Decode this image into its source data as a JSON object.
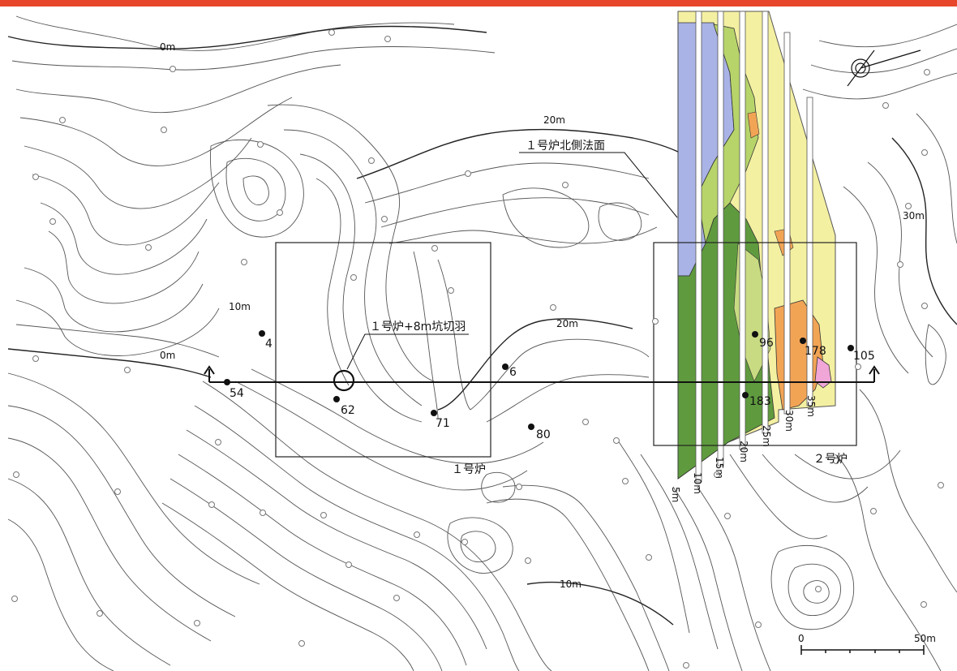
{
  "header_bar": {
    "color": "#e8462a"
  },
  "colors": {
    "geology_blue": "#aab3e6",
    "geology_green": "#5f9b3e",
    "geology_lightgreen": "#b7d46a",
    "geology_yellow": "#f4f0a2",
    "geology_orange": "#f2a455",
    "geology_pink": "#f0a6d6",
    "contour": "#555555"
  },
  "contour_labels": [
    {
      "id": "c-0m-top",
      "text": "0m"
    },
    {
      "id": "c-20m-top",
      "text": "20m"
    },
    {
      "id": "c-10m-left",
      "text": "10m"
    },
    {
      "id": "c-0m-left",
      "text": "0m"
    },
    {
      "id": "c-20m-mid",
      "text": "20m"
    },
    {
      "id": "c-10m-bottom",
      "text": "10m"
    },
    {
      "id": "c-30m-right",
      "text": "30m"
    }
  ],
  "annotations": {
    "slope_north": "１号炉北側法面",
    "pit_face": "１号炉+8m坑切羽",
    "reactor1": "１号炉",
    "reactor2": "２号炉"
  },
  "boreholes": [
    {
      "id": "bh-4",
      "label": "4"
    },
    {
      "id": "bh-54",
      "label": "54"
    },
    {
      "id": "bh-62",
      "label": "62"
    },
    {
      "id": "bh-6",
      "label": "6"
    },
    {
      "id": "bh-71",
      "label": "71"
    },
    {
      "id": "bh-80",
      "label": "80"
    },
    {
      "id": "bh-96",
      "label": "96"
    },
    {
      "id": "bh-178",
      "label": "178"
    },
    {
      "id": "bh-105",
      "label": "105"
    },
    {
      "id": "bh-183",
      "label": "183"
    }
  ],
  "strip_labels": [
    "5m",
    "10m",
    "15m",
    "20m",
    "25m",
    "30m",
    "35m"
  ],
  "scale_bar": {
    "start_label": "0",
    "end_label": "50m"
  }
}
